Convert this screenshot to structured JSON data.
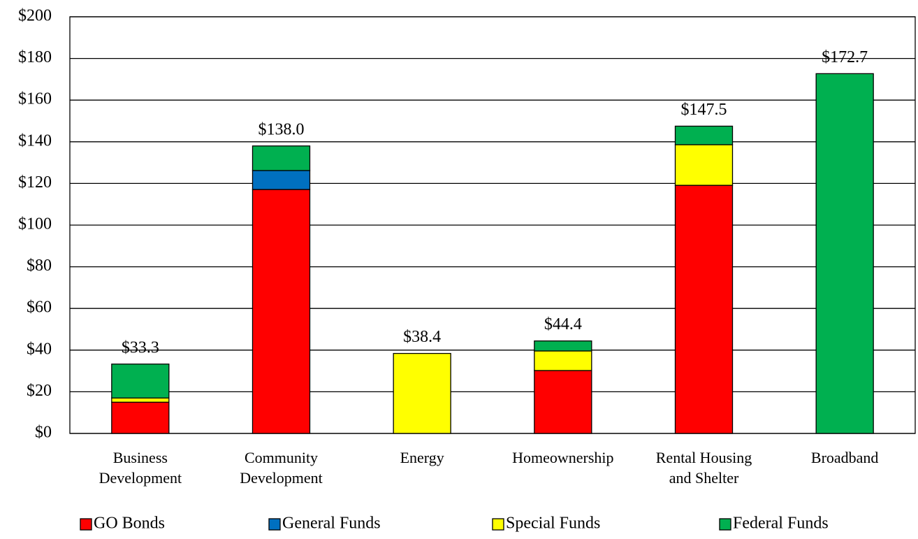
{
  "chart_data": {
    "type": "stacked_bar",
    "categories": [
      "Business\nDevelopment",
      "Community\nDevelopment",
      "Energy",
      "Homeownership",
      "Rental Housing\nand Shelter",
      "Broadband"
    ],
    "series": [
      {
        "name": "GO Bonds",
        "color": "#ff0000",
        "values": [
          15.0,
          117.1,
          0,
          30.2,
          119.1,
          0
        ]
      },
      {
        "name": "General Funds",
        "color": "#0070c0",
        "values": [
          0,
          9.1,
          0,
          0,
          0,
          0
        ]
      },
      {
        "name": "Special Funds",
        "color": "#ffff00",
        "values": [
          2.0,
          0,
          38.4,
          9.4,
          19.5,
          0
        ]
      },
      {
        "name": "Federal Funds",
        "color": "#00b050",
        "values": [
          16.3,
          11.8,
          0,
          4.8,
          8.9,
          172.7
        ]
      }
    ],
    "totals": [
      33.3,
      138.0,
      38.4,
      44.4,
      147.5,
      172.7
    ],
    "total_labels": [
      "$33.3",
      "$138.0",
      "$38.4",
      "$44.4",
      "$147.5",
      "$172.7"
    ],
    "ylim": [
      0,
      200
    ],
    "yticks": [
      {
        "value": 0,
        "label": "$0"
      },
      {
        "value": 20,
        "label": "$20"
      },
      {
        "value": 40,
        "label": "$40"
      },
      {
        "value": 60,
        "label": "$60"
      },
      {
        "value": 80,
        "label": "$80"
      },
      {
        "value": 100,
        "label": "$100"
      },
      {
        "value": 120,
        "label": "$120"
      },
      {
        "value": 140,
        "label": "$140"
      },
      {
        "value": 160,
        "label": "$160"
      },
      {
        "value": 180,
        "label": "$180"
      },
      {
        "value": 200,
        "label": "$200"
      }
    ],
    "grid": true,
    "legend": "bottom"
  }
}
